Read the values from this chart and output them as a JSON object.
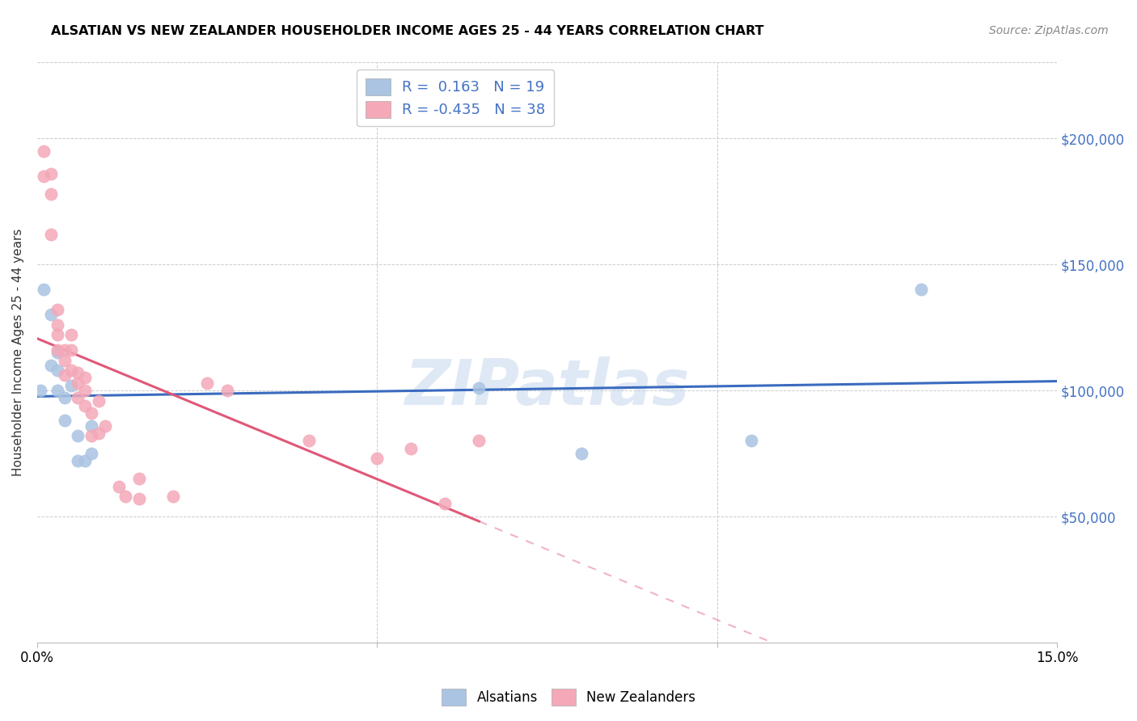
{
  "title": "ALSATIAN VS NEW ZEALANDER HOUSEHOLDER INCOME AGES 25 - 44 YEARS CORRELATION CHART",
  "source": "Source: ZipAtlas.com",
  "ylabel": "Householder Income Ages 25 - 44 years",
  "xlim": [
    0.0,
    0.15
  ],
  "ylim": [
    0,
    230000
  ],
  "xtick_labels": [
    "0.0%",
    "",
    "",
    "15.0%"
  ],
  "xtick_vals": [
    0.0,
    0.05,
    0.1,
    0.15
  ],
  "ytick_labels": [
    "$50,000",
    "$100,000",
    "$150,000",
    "$200,000"
  ],
  "ytick_vals": [
    50000,
    100000,
    150000,
    200000
  ],
  "alsatians_R": "0.163",
  "alsatians_N": "19",
  "nz_R": "-0.435",
  "nz_N": "38",
  "alsatian_color": "#aac4e2",
  "nz_color": "#f4a8b8",
  "alsatian_line_color": "#3a6bbf",
  "nz_line_color": "#e05878",
  "watermark": "ZIPatlas",
  "alsatian_x": [
    0.0005,
    0.001,
    0.002,
    0.002,
    0.003,
    0.003,
    0.003,
    0.004,
    0.004,
    0.005,
    0.006,
    0.006,
    0.007,
    0.008,
    0.008,
    0.065,
    0.08,
    0.105,
    0.13
  ],
  "alsatian_y": [
    100000,
    140000,
    130000,
    110000,
    115000,
    108000,
    100000,
    97000,
    88000,
    102000,
    82000,
    72000,
    72000,
    86000,
    75000,
    101000,
    75000,
    80000,
    140000
  ],
  "nz_x": [
    0.001,
    0.001,
    0.002,
    0.002,
    0.002,
    0.003,
    0.003,
    0.003,
    0.003,
    0.004,
    0.004,
    0.004,
    0.005,
    0.005,
    0.005,
    0.006,
    0.006,
    0.006,
    0.007,
    0.007,
    0.007,
    0.008,
    0.008,
    0.009,
    0.009,
    0.01,
    0.012,
    0.013,
    0.015,
    0.015,
    0.02,
    0.025,
    0.028,
    0.04,
    0.05,
    0.055,
    0.06,
    0.065
  ],
  "nz_y": [
    195000,
    185000,
    186000,
    178000,
    162000,
    132000,
    126000,
    122000,
    116000,
    116000,
    112000,
    106000,
    122000,
    116000,
    108000,
    107000,
    103000,
    97000,
    105000,
    100000,
    94000,
    91000,
    82000,
    96000,
    83000,
    86000,
    62000,
    58000,
    57000,
    65000,
    58000,
    103000,
    100000,
    80000,
    73000,
    77000,
    55000,
    80000
  ]
}
